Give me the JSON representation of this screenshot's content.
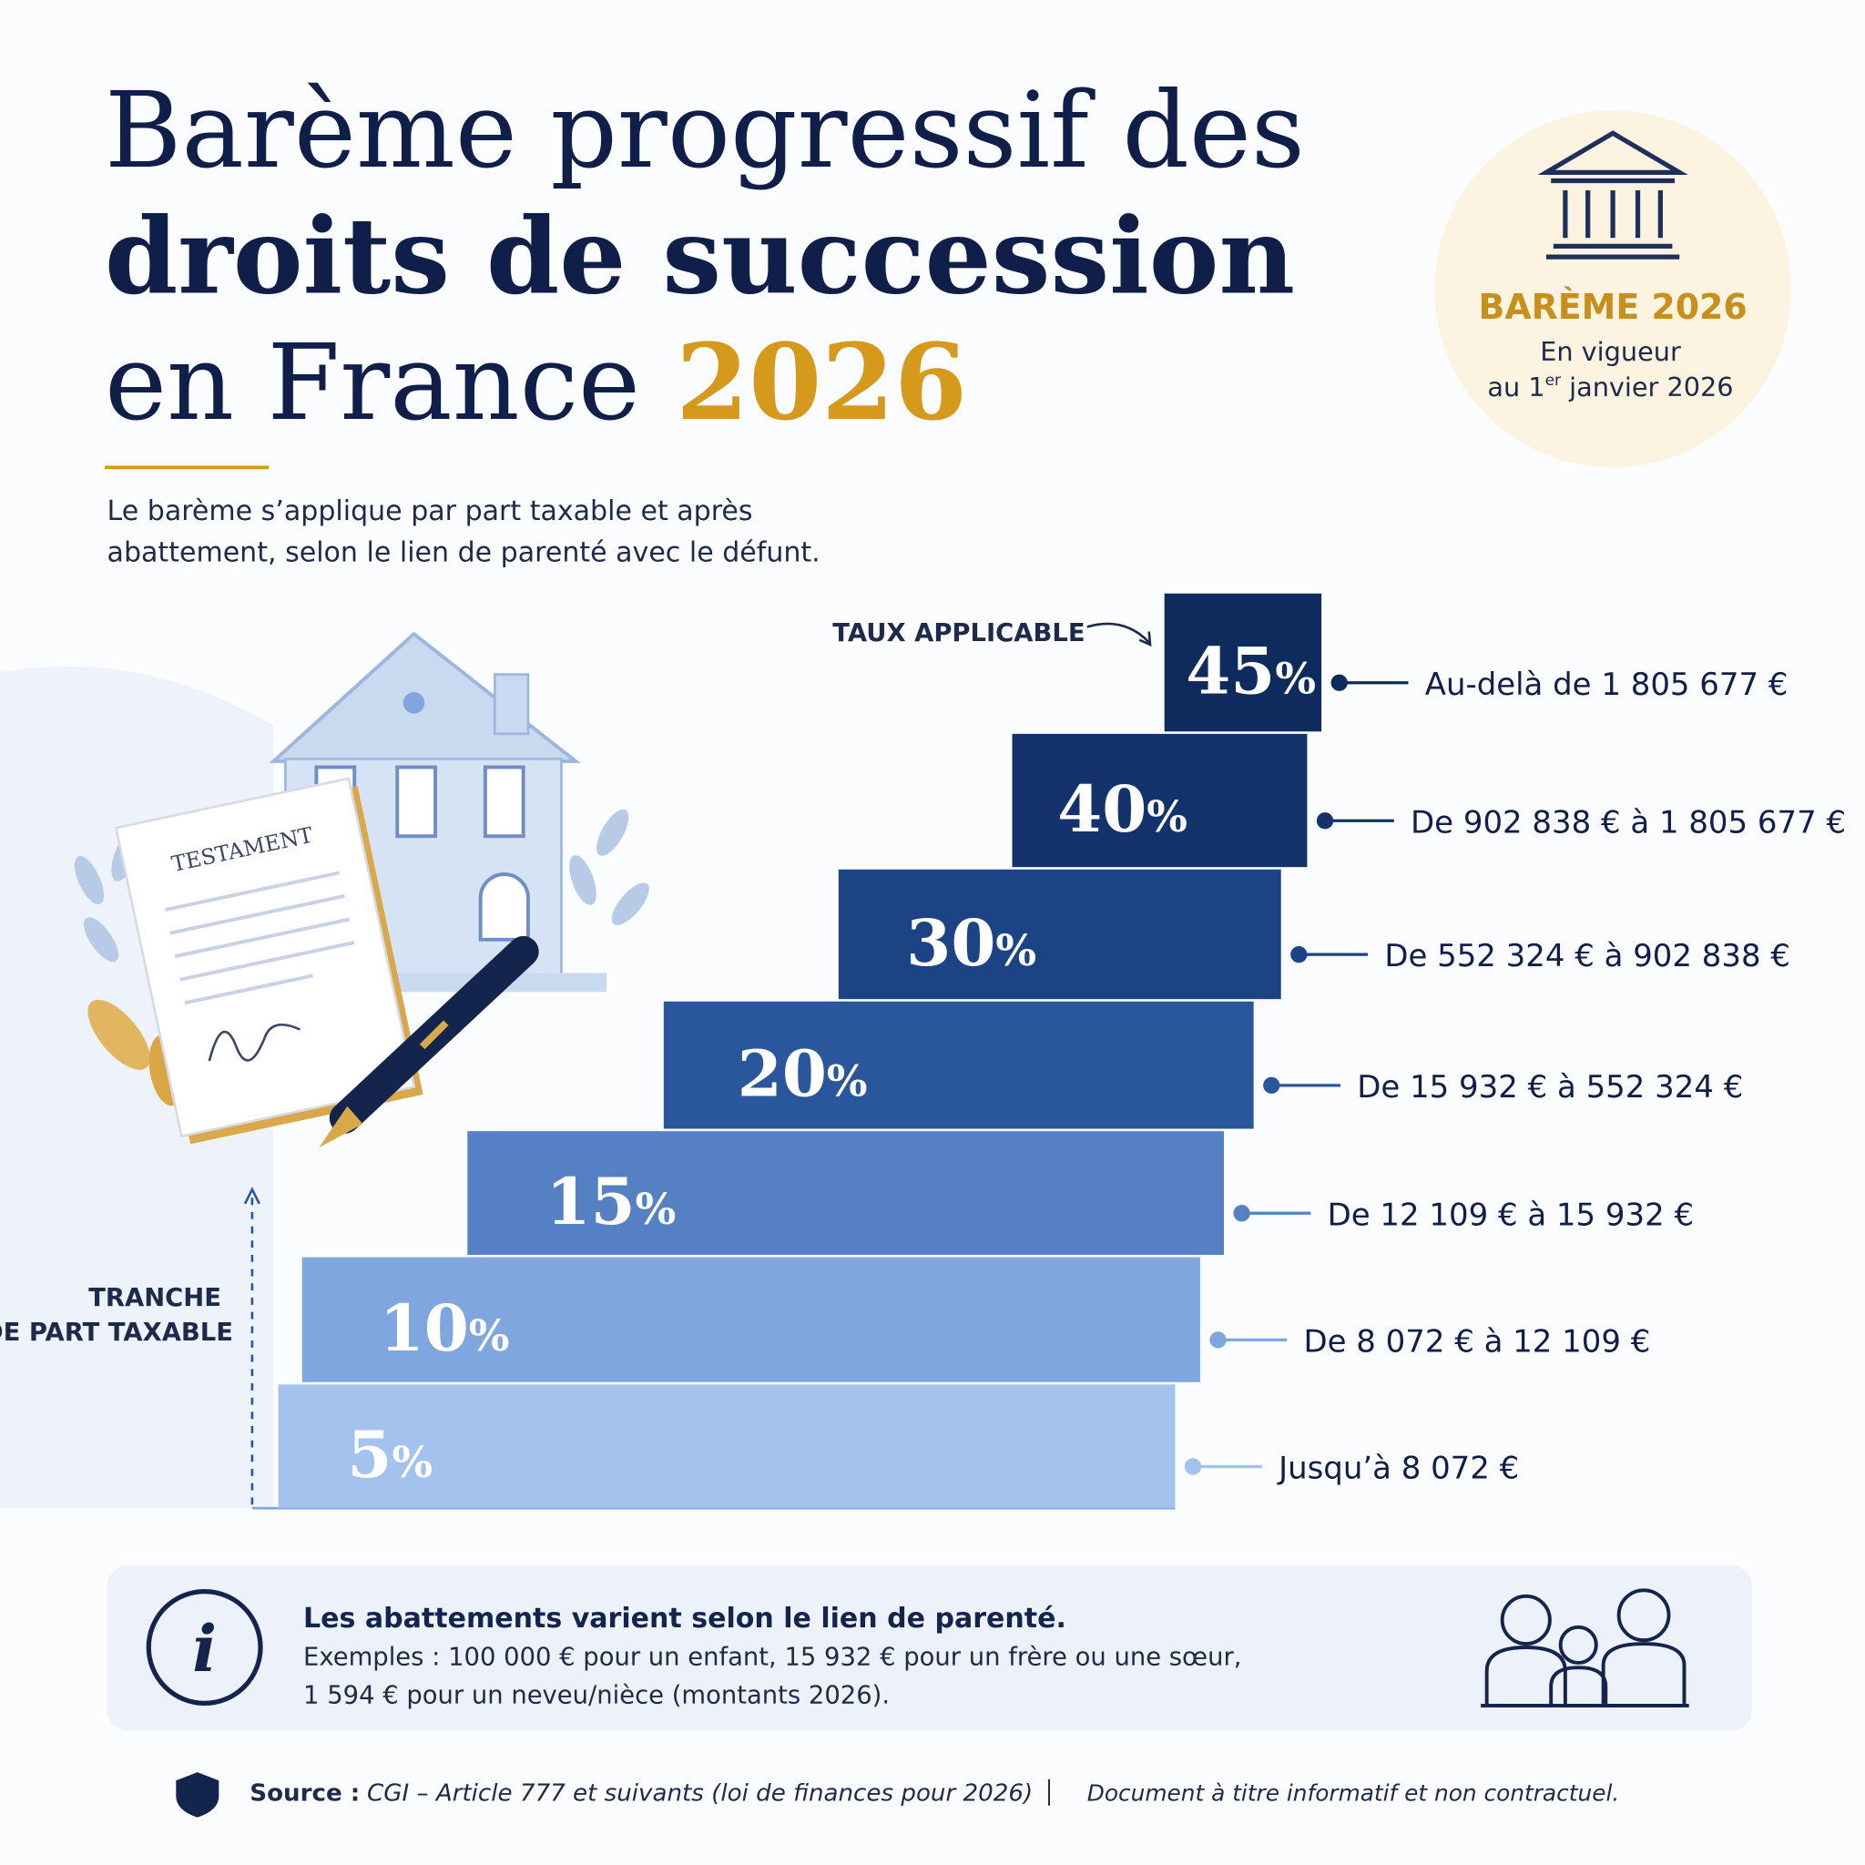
{
  "title": {
    "line1": "Barème progressif des",
    "line2": "droits de succession",
    "line3": "en France",
    "year": "2026"
  },
  "subtitle": [
    "Le barème s’applique par part taxable et après",
    "abattement, selon le lien de parenté avec le défunt."
  ],
  "badge": {
    "title": "BARÈME 2026",
    "line1": "En vigueur",
    "line2": {
      "before": "au 1",
      "sup": "er",
      "after": " janvier 2026"
    }
  },
  "rate_label": "TAUX APPLICABLE",
  "axis_label": [
    "TRANCHE",
    "DE PART TAXABLE"
  ],
  "brackets": [
    {
      "rate": "45%",
      "range": "Au-delà de 1 805 677 €"
    },
    {
      "rate": "40%",
      "range": "De 902 838 € à 1 805 677 €"
    },
    {
      "rate": "30%",
      "range": "De 552 324 € à 902 838 €"
    },
    {
      "rate": "20%",
      "range": "De 15 932 € à 552 324 €"
    },
    {
      "rate": "15%",
      "range": "De 12 109 € à 15 932 €"
    },
    {
      "rate": "10%",
      "range": "De 8 072 € à 12 109 €"
    },
    {
      "rate": "5%",
      "range": "Jusqu’à 8 072 €"
    }
  ],
  "illustration": {
    "document": "TESTAMENT"
  },
  "info": {
    "heading": "Les abattements varient selon le lien de parenté.",
    "lines": [
      "Exemples : 100 000 € pour un enfant, 15 932 € pour un frère ou une sœur,",
      "1 594 € pour un neveu/nièce (montants 2026)."
    ]
  },
  "footer": {
    "source_label": "Source :",
    "source": "CGI – Article 777 et suivants (loi de finances pour 2026)",
    "disclaimer": "Document à titre informatif et non contractuel."
  }
}
